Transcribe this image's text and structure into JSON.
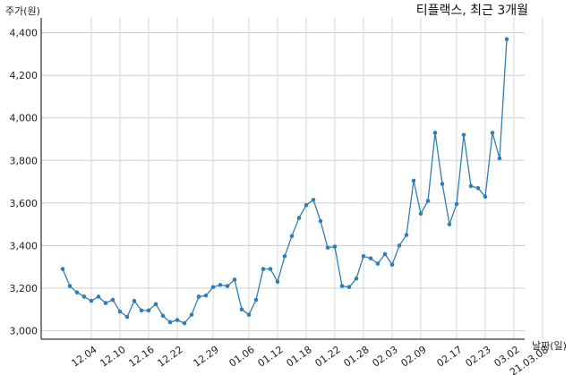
{
  "chart_data": {
    "type": "line",
    "title": "티플랙스, 최근 3개월",
    "ylabel": "주가(원)",
    "xlabel": "날짜(일)",
    "ylim": [
      2960,
      4470
    ],
    "yticks": [
      3000,
      3200,
      3400,
      3600,
      3800,
      4000,
      4200,
      4400
    ],
    "ytick_labels": [
      "3,000",
      "3,200",
      "3,400",
      "3,600",
      "3,800",
      "4,000",
      "4,200",
      "4,400"
    ],
    "xtick_labels": [
      "12.04",
      "12.10",
      "12.16",
      "12.22",
      "12.29",
      "01.06",
      "01.12",
      "01.18",
      "01.22",
      "01.28",
      "02.03",
      "02.09",
      "02.17",
      "02.23",
      "03.02",
      "21.03.08"
    ],
    "xtick_indices": [
      4,
      8,
      12,
      16,
      21,
      26,
      30,
      34,
      38,
      42,
      46,
      50,
      55,
      59,
      63,
      67
    ],
    "grid": true,
    "line_color": "#2f7fb5",
    "series": [
      {
        "values": [
          3290,
          3210,
          3180,
          3160,
          3140,
          3160,
          3130,
          3145,
          3090,
          3065,
          3140,
          3095,
          3095,
          3125,
          3070,
          3040,
          3050,
          3035,
          3075,
          3160,
          3165,
          3205,
          3215,
          3210,
          3240,
          3100,
          3075,
          3145,
          3290,
          3290,
          3230,
          3350,
          3445,
          3530,
          3590,
          3615,
          3515,
          3390,
          3395,
          3210,
          3205,
          3245,
          3350,
          3340,
          3315,
          3360,
          3310,
          3400,
          3450,
          3705,
          3550,
          3610,
          3930,
          3690,
          3500,
          3595,
          3920,
          3680,
          3670,
          3630,
          3930,
          3810,
          4370
        ]
      }
    ]
  }
}
